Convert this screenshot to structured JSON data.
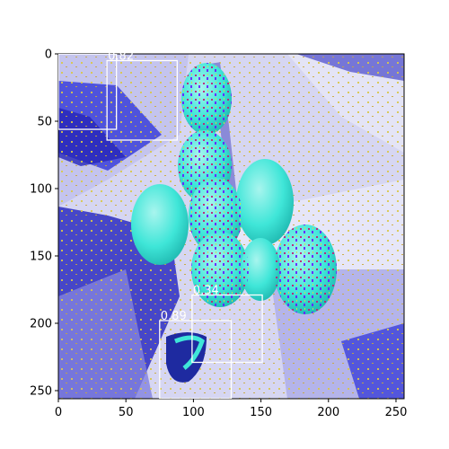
{
  "image": {
    "description_colors": {
      "cyan": "#3fe6d8",
      "blue": "#3b3fd8",
      "lavender": "#c9c9f0",
      "yellow": "#d9d94a",
      "magenta": "#c01a7a",
      "violet": "#6a1aff"
    }
  },
  "axes": {
    "x_ticks": [
      "0",
      "50",
      "100",
      "150",
      "200",
      "250"
    ],
    "y_ticks": [
      "0",
      "50",
      "100",
      "150",
      "200",
      "250"
    ],
    "x_range": [
      0,
      256
    ],
    "y_range": [
      0,
      256
    ]
  },
  "detections": [
    {
      "label": "",
      "x0": 0,
      "y0": 0,
      "x1": 43,
      "y1": 56
    },
    {
      "label": "0.82",
      "x0": 36,
      "y0": 5,
      "x1": 88,
      "y1": 64
    },
    {
      "label": "0.34",
      "x0": 99,
      "y0": 179,
      "x1": 151,
      "y1": 229
    },
    {
      "label": "0.89",
      "x0": 75,
      "y0": 198,
      "x1": 128,
      "y1": 256
    }
  ]
}
